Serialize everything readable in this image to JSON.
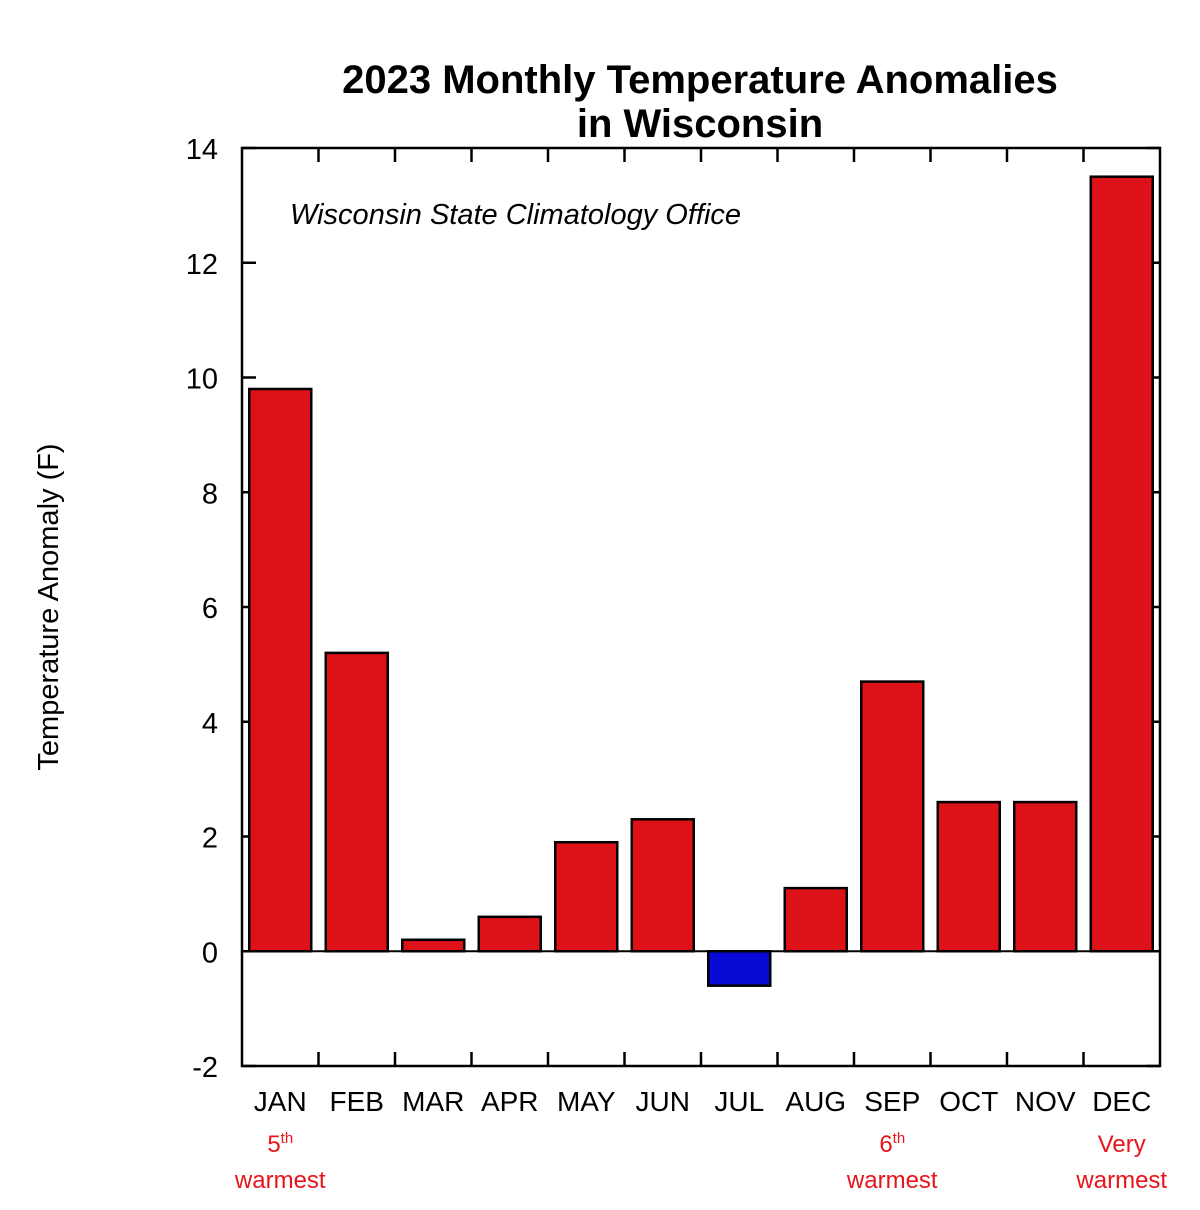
{
  "chart_data": {
    "type": "bar",
    "title": "2023 Monthly Temperature Anomalies",
    "title_line2": "in Wisconsin",
    "source_note": "Wisconsin State Climatology Office",
    "xlabel": "",
    "ylabel": "Temperature Anomaly (F)",
    "ylim": [
      -2,
      14
    ],
    "yticks": [
      -2,
      0,
      2,
      4,
      6,
      8,
      10,
      12,
      14
    ],
    "grid": false,
    "categories": [
      "JAN",
      "FEB",
      "MAR",
      "APR",
      "MAY",
      "JUN",
      "JUL",
      "AUG",
      "SEP",
      "OCT",
      "NOV",
      "DEC"
    ],
    "values": [
      9.8,
      5.2,
      0.2,
      0.6,
      1.9,
      2.3,
      -0.6,
      1.1,
      4.7,
      2.6,
      2.6,
      13.5
    ],
    "colors": {
      "positive": "#dd1219",
      "negative": "#0a0ad6",
      "annotation": "#e8141c"
    },
    "annotations": [
      {
        "category": "JAN",
        "rank": "5",
        "suffix": "th",
        "text": "warmest"
      },
      {
        "category": "SEP",
        "rank": "6",
        "suffix": "th",
        "text": "warmest"
      },
      {
        "category": "DEC",
        "rank": "Very",
        "suffix": "",
        "text": "warmest"
      }
    ]
  }
}
